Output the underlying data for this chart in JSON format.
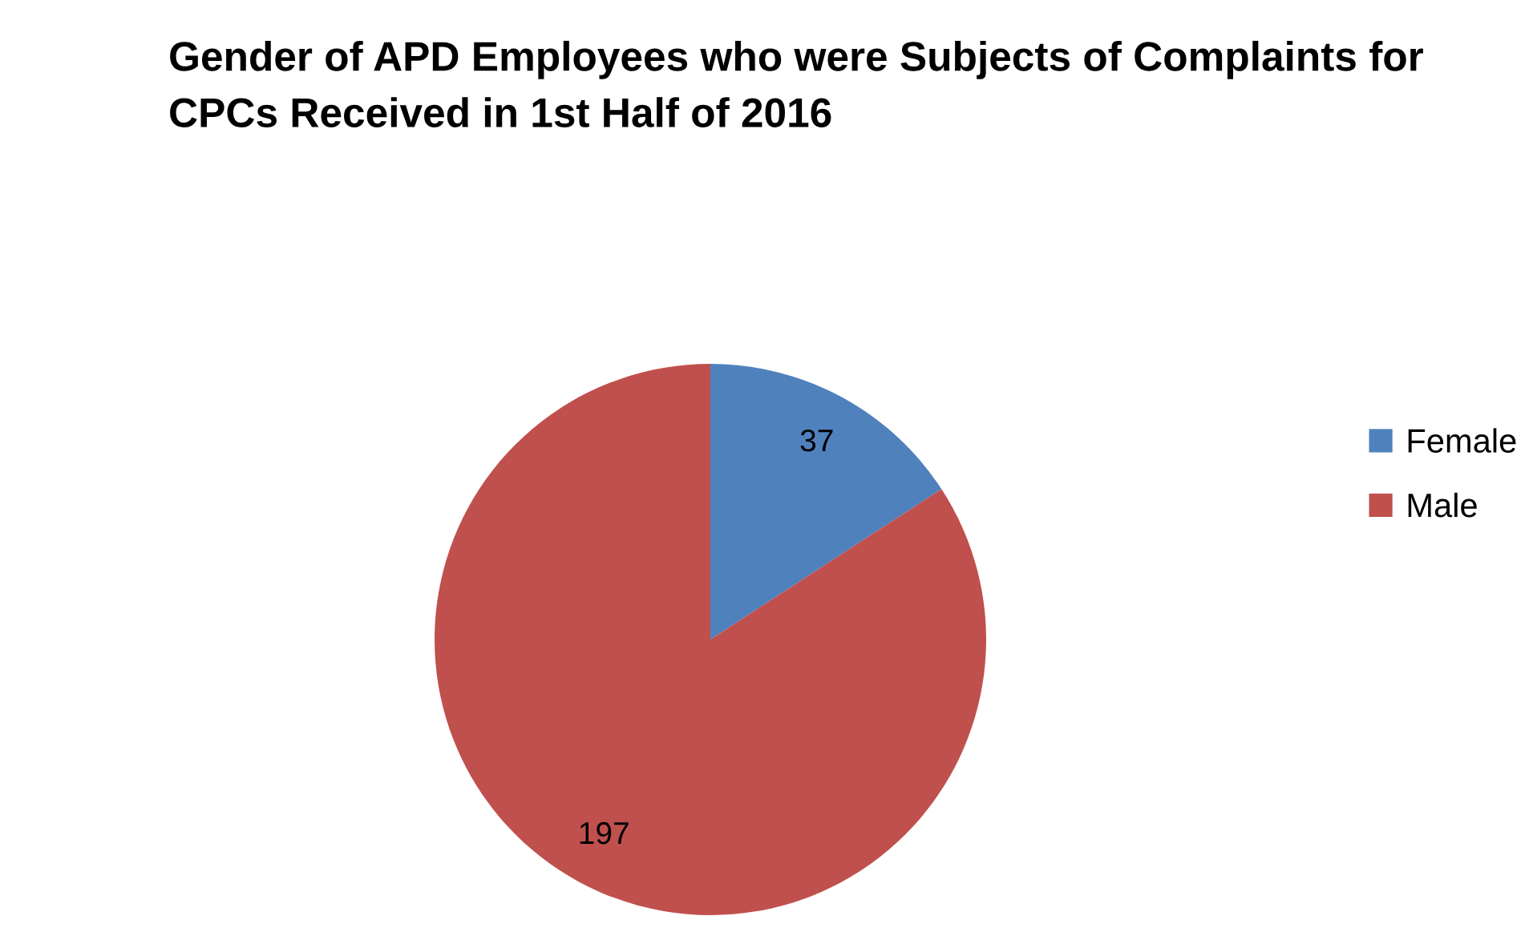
{
  "chart_data": {
    "type": "pie",
    "title": "Gender of APD Employees who were Subjects of Complaints for CPCs Received in 1st Half of 2016",
    "categories": [
      "Female",
      "Male"
    ],
    "values": [
      37,
      197
    ],
    "colors": [
      "#4f81bd",
      "#c0504d"
    ],
    "data_labels": true,
    "legend": "right"
  }
}
